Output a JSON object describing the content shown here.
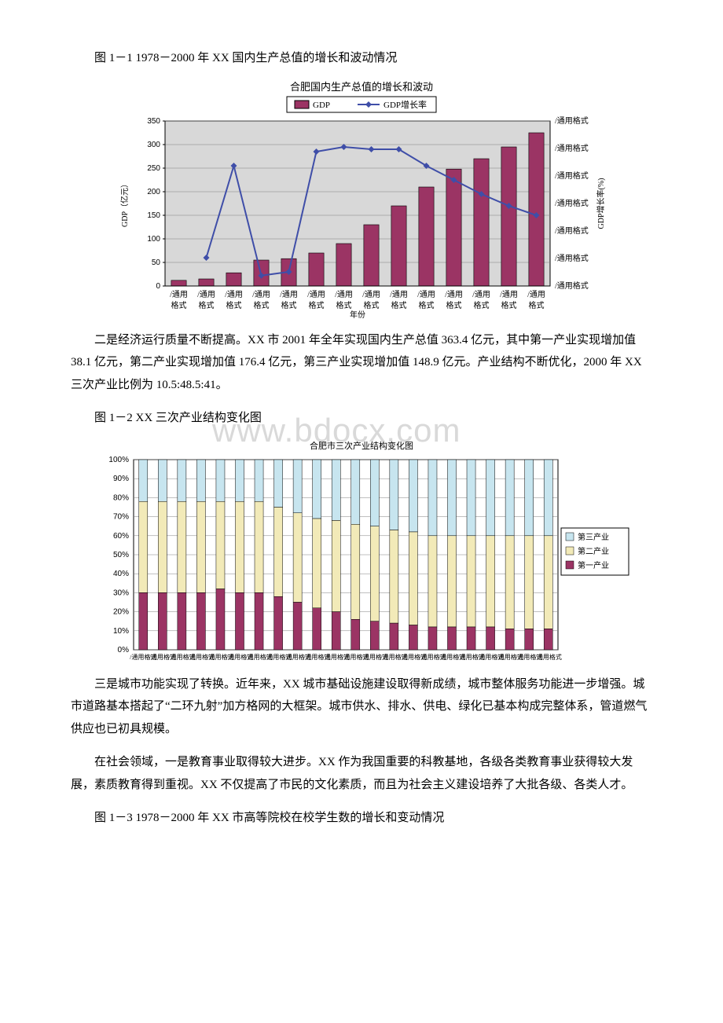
{
  "fig1": {
    "caption": "图 1－1 1978－2000 年 XX 国内生产总值的增长和波动情况",
    "title": "合肥国内生产总值的增长和波动",
    "type": "bar+line",
    "legend_bar": "GDP",
    "legend_line": "GDP增长率",
    "y1_label": "GDP（亿元）",
    "y2_label": "GDP增长率(%)",
    "y1_lim": [
      0,
      350
    ],
    "y1_tick_step": 50,
    "y2_tick_label": "/通用格式",
    "x_tick_label": "/通用\n格式",
    "x_axis_mid_label": "年份",
    "bars": [
      12,
      15,
      28,
      55,
      58,
      70,
      90,
      130,
      170,
      210,
      248,
      270,
      295,
      325
    ],
    "line": [
      null,
      60,
      255,
      22,
      30,
      285,
      295,
      290,
      290,
      255,
      225,
      195,
      170,
      150
    ],
    "bar_color": "#9b3464",
    "bar_edge": "#000000",
    "line_color": "#3f4ea8",
    "marker_color": "#3f4ea8",
    "plot_bg": "#d8d8d8",
    "grid_color": "#808080",
    "legend_bg": "#ffffff",
    "legend_border": "#000000"
  },
  "para1": "二是经济运行质量不断提高。XX 市 2001 年全年实现国内生产总值 363.4 亿元，其中第一产业实现增加值 38.1 亿元，第二产业实现增加值 176.4 亿元，第三产业实现增加值 148.9 亿元。产业结构不断优化，2000 年 XX 三次产业比例为 10.5:48.5:41。",
  "fig2": {
    "caption": "图 1－2 XX 三次产业结构变化图",
    "title": "合肥市三次产业结构变化图",
    "type": "stacked-bar-100",
    "y_lim": [
      0,
      100
    ],
    "y_tick_step": 10,
    "x_tick_label": "/通用格式",
    "legend_items": [
      "第三产业",
      "第二产业",
      "第一产业"
    ],
    "legend_prefix": "□",
    "series_primary": [
      30,
      30,
      30,
      30,
      32,
      30,
      30,
      28,
      25,
      22,
      20,
      16,
      15,
      14,
      13,
      12,
      12,
      12,
      12,
      11,
      11,
      11
    ],
    "series_secondary": [
      48,
      48,
      48,
      48,
      46,
      48,
      48,
      47,
      47,
      47,
      48,
      50,
      50,
      49,
      49,
      48,
      48,
      48,
      48,
      49,
      49,
      49
    ],
    "series_tertiary": [
      22,
      22,
      22,
      22,
      22,
      22,
      22,
      25,
      28,
      31,
      32,
      34,
      35,
      37,
      38,
      40,
      40,
      40,
      40,
      40,
      40,
      40
    ],
    "color_primary": "#9b3464",
    "color_secondary": "#f2eab8",
    "color_tertiary": "#c7e5ef",
    "plot_bg": "#ffffff",
    "grid_color": "#808080",
    "legend_bg": "#ffffff",
    "legend_border": "#000000"
  },
  "para2": "三是城市功能实现了转换。近年来，XX 城市基础设施建设取得新成绩，城市整体服务功能进一步增强。城市道路基本搭起了“二环九射”加方格网的大框架。城市供水、排水、供电、绿化已基本构成完整体系，管道燃气供应也已初具规模。",
  "para3": "在社会领域，一是教育事业取得较大进步。XX 作为我国重要的科教基地，各级各类教育事业获得较大发展，素质教育得到重视。XX 不仅提高了市民的文化素质，而且为社会主义建设培养了大批各级、各类人才。",
  "fig3_caption": "图 1－3 1978－2000 年 XX 市高等院校在校学生数的增长和变动情况",
  "watermark": "www.bdocx.com"
}
